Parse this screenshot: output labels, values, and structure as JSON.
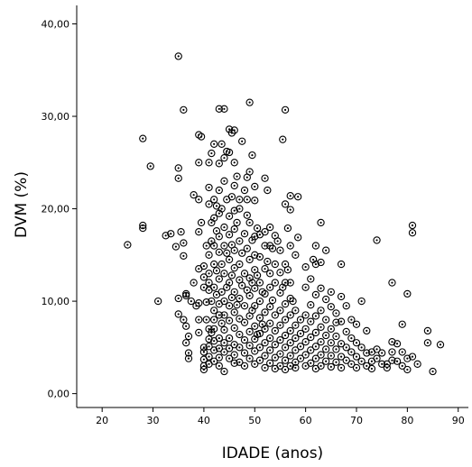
{
  "chart_data": {
    "type": "scatter",
    "title": "",
    "xlabel": "IDADE (anos)",
    "ylabel": "DVM (%)",
    "xlim": [
      15,
      92
    ],
    "ylim": [
      -1.5,
      42
    ],
    "x_ticks": [
      20,
      30,
      40,
      50,
      60,
      70,
      80,
      90
    ],
    "x_tick_labels": [
      "20",
      "30",
      "40",
      "50",
      "60",
      "70",
      "80",
      "90"
    ],
    "y_ticks": [
      0,
      10,
      20,
      30,
      40
    ],
    "y_tick_labels": [
      "0,00",
      "10,00",
      "20,00",
      "30,00",
      "40,00"
    ],
    "grid": false,
    "marker": "circle-dot",
    "colors": {
      "marker": "#000000",
      "axis": "#000000",
      "background": "#ffffff"
    },
    "points": [
      [
        25,
        16.1
      ],
      [
        28,
        27.6
      ],
      [
        28,
        18.2
      ],
      [
        28,
        17.9
      ],
      [
        29.5,
        24.6
      ],
      [
        31,
        10.0
      ],
      [
        32.5,
        17.1
      ],
      [
        33.5,
        17.3
      ],
      [
        34.5,
        15.9
      ],
      [
        35,
        36.5
      ],
      [
        35,
        24.4
      ],
      [
        35,
        23.3
      ],
      [
        35,
        10.3
      ],
      [
        35,
        8.6
      ],
      [
        35.5,
        17.5
      ],
      [
        36,
        30.7
      ],
      [
        36,
        16.3
      ],
      [
        36,
        14.9
      ],
      [
        36,
        8.0
      ],
      [
        36.5,
        10.6
      ],
      [
        36.5,
        10.8
      ],
      [
        36.5,
        7.3
      ],
      [
        36.5,
        5.5
      ],
      [
        37,
        4.4
      ],
      [
        37,
        3.8
      ],
      [
        37,
        6.2
      ],
      [
        37.5,
        10.0
      ],
      [
        38,
        21.5
      ],
      [
        38,
        12.0
      ],
      [
        38.5,
        9.5
      ],
      [
        39,
        28.0
      ],
      [
        39,
        25.0
      ],
      [
        39,
        21.0
      ],
      [
        39,
        17.5
      ],
      [
        39,
        13.5
      ],
      [
        39,
        9.8
      ],
      [
        39,
        8.0
      ],
      [
        39,
        6.6
      ],
      [
        39.5,
        27.8
      ],
      [
        39.5,
        18.5
      ],
      [
        40,
        13.8
      ],
      [
        40,
        12.6
      ],
      [
        40,
        11.5
      ],
      [
        40,
        5.0
      ],
      [
        40,
        4.5
      ],
      [
        40,
        3.7
      ],
      [
        40,
        3.0
      ],
      [
        40,
        2.6
      ],
      [
        40.5,
        16.0
      ],
      [
        40.5,
        9.9
      ],
      [
        40.5,
        8.0
      ],
      [
        41,
        25.0
      ],
      [
        41,
        22.3
      ],
      [
        41,
        20.5
      ],
      [
        41,
        15.0
      ],
      [
        41,
        13.0
      ],
      [
        41,
        12.0
      ],
      [
        41,
        11.2
      ],
      [
        41,
        7.0
      ],
      [
        41,
        5.9
      ],
      [
        41,
        5.1
      ],
      [
        41,
        4.0
      ],
      [
        41,
        3.2
      ],
      [
        41.5,
        26.0
      ],
      [
        41.5,
        18.5
      ],
      [
        41.5,
        16.5
      ],
      [
        41.5,
        10.0
      ],
      [
        41.5,
        6.6
      ],
      [
        42,
        27.0
      ],
      [
        42,
        21.0
      ],
      [
        42,
        19.0
      ],
      [
        42,
        16.0
      ],
      [
        42,
        14.0
      ],
      [
        42,
        11.5
      ],
      [
        42,
        9.0
      ],
      [
        42,
        8.0
      ],
      [
        42,
        7.0
      ],
      [
        42,
        5.7
      ],
      [
        42,
        4.7
      ],
      [
        42,
        3.5
      ],
      [
        42.5,
        20.3
      ],
      [
        42.5,
        17.6
      ],
      [
        42.5,
        13.3
      ],
      [
        42.5,
        10.7
      ],
      [
        43,
        30.8
      ],
      [
        43,
        24.9
      ],
      [
        43,
        22.0
      ],
      [
        43,
        19.5
      ],
      [
        43,
        17.0
      ],
      [
        43,
        15.3
      ],
      [
        43,
        12.4
      ],
      [
        43,
        9.7
      ],
      [
        43,
        8.5
      ],
      [
        43,
        6.0
      ],
      [
        43,
        4.9
      ],
      [
        43,
        3.9
      ],
      [
        43,
        3.0
      ],
      [
        43.5,
        27.0
      ],
      [
        43.5,
        20.0
      ],
      [
        43.5,
        14.0
      ],
      [
        43.5,
        11.0
      ],
      [
        43.5,
        7.6
      ],
      [
        44,
        30.8
      ],
      [
        44,
        25.5
      ],
      [
        44,
        23.0
      ],
      [
        44,
        18.0
      ],
      [
        44,
        16.0
      ],
      [
        44,
        13.0
      ],
      [
        44,
        10.0
      ],
      [
        44,
        8.5
      ],
      [
        44,
        6.9
      ],
      [
        44,
        5.5
      ],
      [
        44,
        4.5
      ],
      [
        44,
        2.4
      ],
      [
        44.5,
        26.2
      ],
      [
        44.5,
        21.0
      ],
      [
        44.5,
        15.2
      ],
      [
        44.5,
        11.5
      ],
      [
        45,
        28.6
      ],
      [
        45,
        26.1
      ],
      [
        45,
        19.2
      ],
      [
        45,
        17.2
      ],
      [
        45,
        14.5
      ],
      [
        45,
        12.0
      ],
      [
        45,
        9.5
      ],
      [
        45,
        7.9
      ],
      [
        45,
        6.0
      ],
      [
        45,
        4.9
      ],
      [
        45,
        3.8
      ],
      [
        45.5,
        28.2
      ],
      [
        45.5,
        21.3
      ],
      [
        45.5,
        16.1
      ],
      [
        45.5,
        12.8
      ],
      [
        45.5,
        10.4
      ],
      [
        46,
        28.5
      ],
      [
        46,
        25.0
      ],
      [
        46,
        22.5
      ],
      [
        46,
        19.8
      ],
      [
        46,
        17.8
      ],
      [
        46,
        15.5
      ],
      [
        46,
        13.6
      ],
      [
        46,
        11.0
      ],
      [
        46,
        8.8
      ],
      [
        46,
        7.1
      ],
      [
        46,
        5.3
      ],
      [
        46,
        4.2
      ],
      [
        46,
        3.3
      ],
      [
        46.5,
        23.5
      ],
      [
        46.5,
        18.5
      ],
      [
        46.5,
        9.6
      ],
      [
        47,
        21.0
      ],
      [
        47,
        20.0
      ],
      [
        47,
        16.5
      ],
      [
        47,
        14.0
      ],
      [
        47,
        12.3
      ],
      [
        47,
        10.3
      ],
      [
        47,
        8.1
      ],
      [
        47,
        6.4
      ],
      [
        47,
        5.0
      ],
      [
        47,
        3.4
      ],
      [
        47.5,
        27.3
      ],
      [
        47.5,
        15.2
      ],
      [
        47.5,
        11.7
      ],
      [
        48,
        22.0
      ],
      [
        48,
        17.3
      ],
      [
        48,
        13.0
      ],
      [
        48,
        9.5
      ],
      [
        48,
        7.7
      ],
      [
        48,
        5.8
      ],
      [
        48,
        4.4
      ],
      [
        48,
        3.0
      ],
      [
        48.5,
        23.4
      ],
      [
        48.5,
        21.0
      ],
      [
        48.5,
        19.3
      ],
      [
        48.5,
        15.7
      ],
      [
        48.5,
        11.2
      ],
      [
        49,
        31.5
      ],
      [
        49,
        24.0
      ],
      [
        49,
        18.5
      ],
      [
        49,
        14.5
      ],
      [
        49,
        12.5
      ],
      [
        49,
        10.6
      ],
      [
        49,
        8.4
      ],
      [
        49,
        6.7
      ],
      [
        49,
        5.2
      ],
      [
        49,
        3.8
      ],
      [
        49.5,
        25.8
      ],
      [
        49.5,
        16.6
      ],
      [
        49.5,
        12.0
      ],
      [
        49.5,
        9.0
      ],
      [
        50,
        22.4
      ],
      [
        50,
        20.9
      ],
      [
        50,
        17.0
      ],
      [
        50,
        15.0
      ],
      [
        50,
        13.4
      ],
      [
        50,
        11.4
      ],
      [
        50,
        9.5
      ],
      [
        50,
        7.3
      ],
      [
        50,
        5.9
      ],
      [
        50,
        4.6
      ],
      [
        50,
        3.2
      ],
      [
        50.5,
        17.9
      ],
      [
        50.5,
        12.8
      ],
      [
        50.5,
        6.4
      ],
      [
        51,
        17.2
      ],
      [
        51,
        14.8
      ],
      [
        51,
        12.0
      ],
      [
        51,
        10.0
      ],
      [
        51,
        8.2
      ],
      [
        51,
        6.5
      ],
      [
        51,
        5.0
      ],
      [
        51,
        3.6
      ],
      [
        51.5,
        11.0
      ],
      [
        51.5,
        7.5
      ],
      [
        52,
        23.3
      ],
      [
        52,
        17.5
      ],
      [
        52,
        16.0
      ],
      [
        52,
        13.5
      ],
      [
        52,
        10.8
      ],
      [
        52,
        8.8
      ],
      [
        52,
        7.0
      ],
      [
        52,
        5.5
      ],
      [
        52,
        4.1
      ],
      [
        52,
        2.8
      ],
      [
        52.5,
        22.0
      ],
      [
        52.5,
        14.3
      ],
      [
        53,
        18.0
      ],
      [
        53,
        16.0
      ],
      [
        53,
        13.0
      ],
      [
        53,
        11.5
      ],
      [
        53,
        9.4
      ],
      [
        53,
        7.6
      ],
      [
        53,
        6.0
      ],
      [
        53,
        4.7
      ],
      [
        53,
        3.3
      ],
      [
        53.5,
        15.7
      ],
      [
        53.5,
        10.1
      ],
      [
        54,
        17.1
      ],
      [
        54,
        14.0
      ],
      [
        54,
        12.0
      ],
      [
        54,
        8.5
      ],
      [
        54,
        6.8
      ],
      [
        54,
        5.3
      ],
      [
        54,
        3.9
      ],
      [
        54,
        2.7
      ],
      [
        54.5,
        16.5
      ],
      [
        55,
        15.5
      ],
      [
        55,
        13.1
      ],
      [
        55,
        10.9
      ],
      [
        55,
        9.0
      ],
      [
        55,
        7.4
      ],
      [
        55,
        5.8
      ],
      [
        55,
        4.3
      ],
      [
        55,
        3.0
      ],
      [
        55.5,
        27.5
      ],
      [
        55.5,
        11.5
      ],
      [
        56,
        30.7
      ],
      [
        56,
        20.5
      ],
      [
        56,
        14.0
      ],
      [
        56,
        12.0
      ],
      [
        56,
        9.7
      ],
      [
        56,
        8.0
      ],
      [
        56,
        6.3
      ],
      [
        56,
        5.0
      ],
      [
        56,
        3.6
      ],
      [
        56,
        2.6
      ],
      [
        56.5,
        17.9
      ],
      [
        56.5,
        13.4
      ],
      [
        57,
        21.4
      ],
      [
        57,
        19.9
      ],
      [
        57,
        16.0
      ],
      [
        57,
        12.0
      ],
      [
        57,
        10.3
      ],
      [
        57,
        8.5
      ],
      [
        57,
        6.8
      ],
      [
        57,
        5.5
      ],
      [
        57,
        4.1
      ],
      [
        57,
        3.0
      ],
      [
        57.5,
        10.0
      ],
      [
        58,
        15.0
      ],
      [
        58,
        9.0
      ],
      [
        58,
        7.4
      ],
      [
        58,
        6.0
      ],
      [
        58,
        4.7
      ],
      [
        58,
        3.4
      ],
      [
        58,
        2.8
      ],
      [
        58.5,
        21.3
      ],
      [
        58.5,
        16.9
      ],
      [
        59,
        8.0
      ],
      [
        59,
        6.5
      ],
      [
        59,
        5.1
      ],
      [
        59,
        3.8
      ],
      [
        60,
        13.7
      ],
      [
        60,
        11.5
      ],
      [
        60,
        8.5
      ],
      [
        60,
        7.0
      ],
      [
        60,
        5.6
      ],
      [
        60,
        4.2
      ],
      [
        60,
        3.0
      ],
      [
        61,
        12.4
      ],
      [
        61,
        9.6
      ],
      [
        61,
        7.8
      ],
      [
        61,
        6.1
      ],
      [
        61,
        4.7
      ],
      [
        61,
        3.3
      ],
      [
        61.5,
        14.5
      ],
      [
        62,
        16.0
      ],
      [
        62,
        14.0
      ],
      [
        62,
        10.7
      ],
      [
        62,
        8.4
      ],
      [
        62,
        6.6
      ],
      [
        62,
        5.1
      ],
      [
        62,
        3.8
      ],
      [
        62,
        2.7
      ],
      [
        63,
        18.5
      ],
      [
        63,
        14.2
      ],
      [
        63,
        11.4
      ],
      [
        63,
        9.0
      ],
      [
        63,
        7.2
      ],
      [
        63,
        5.6
      ],
      [
        63,
        4.2
      ],
      [
        63,
        3.0
      ],
      [
        64,
        15.5
      ],
      [
        64,
        10.2
      ],
      [
        64,
        8.0
      ],
      [
        64,
        6.3
      ],
      [
        64,
        4.8
      ],
      [
        64,
        3.5
      ],
      [
        65,
        11.0
      ],
      [
        65,
        9.4
      ],
      [
        65,
        7.0
      ],
      [
        65,
        5.5
      ],
      [
        65,
        4.1
      ],
      [
        65,
        2.9
      ],
      [
        66,
        8.7
      ],
      [
        66,
        7.7
      ],
      [
        66,
        6.2
      ],
      [
        66,
        4.8
      ],
      [
        66,
        3.4
      ],
      [
        67,
        14.0
      ],
      [
        67,
        10.5
      ],
      [
        67,
        7.8
      ],
      [
        67,
        5.4
      ],
      [
        67,
        4.0
      ],
      [
        67,
        2.8
      ],
      [
        68,
        9.5
      ],
      [
        68,
        6.7
      ],
      [
        68,
        5.0
      ],
      [
        68,
        3.6
      ],
      [
        69,
        8.0
      ],
      [
        69,
        6.0
      ],
      [
        69,
        4.5
      ],
      [
        69,
        3.2
      ],
      [
        70,
        7.5
      ],
      [
        70,
        5.5
      ],
      [
        70,
        4.0
      ],
      [
        70,
        2.8
      ],
      [
        71,
        10.0
      ],
      [
        71,
        5.0
      ],
      [
        71,
        3.5
      ],
      [
        72,
        6.8
      ],
      [
        72,
        4.4
      ],
      [
        72,
        3.0
      ],
      [
        73,
        4.5
      ],
      [
        73,
        3.5
      ],
      [
        73,
        2.7
      ],
      [
        74,
        16.6
      ],
      [
        74,
        4.8
      ],
      [
        74,
        3.8
      ],
      [
        75,
        4.4
      ],
      [
        75,
        3.2
      ],
      [
        76,
        3.2
      ],
      [
        76,
        2.8
      ],
      [
        77,
        12.0
      ],
      [
        77,
        5.6
      ],
      [
        77,
        4.5
      ],
      [
        77,
        3.6
      ],
      [
        78,
        5.4
      ],
      [
        78,
        3.5
      ],
      [
        79,
        7.5
      ],
      [
        79,
        4.5
      ],
      [
        79,
        3.0
      ],
      [
        80,
        10.8
      ],
      [
        80,
        3.8
      ],
      [
        80,
        2.6
      ],
      [
        81,
        18.2
      ],
      [
        81,
        17.4
      ],
      [
        81,
        4.0
      ],
      [
        82,
        3.2
      ],
      [
        84,
        6.8
      ],
      [
        84,
        5.5
      ],
      [
        85,
        2.4
      ],
      [
        86.5,
        5.3
      ]
    ]
  }
}
